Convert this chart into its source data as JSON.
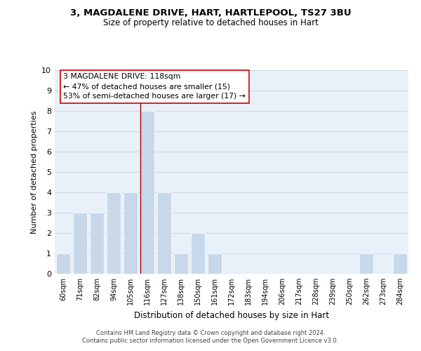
{
  "title_line1": "3, MAGDALENE DRIVE, HART, HARTLEPOOL, TS27 3BU",
  "title_line2": "Size of property relative to detached houses in Hart",
  "xlabel": "Distribution of detached houses by size in Hart",
  "ylabel": "Number of detached properties",
  "bin_labels": [
    "60sqm",
    "71sqm",
    "82sqm",
    "94sqm",
    "105sqm",
    "116sqm",
    "127sqm",
    "138sqm",
    "150sqm",
    "161sqm",
    "172sqm",
    "183sqm",
    "194sqm",
    "206sqm",
    "217sqm",
    "228sqm",
    "239sqm",
    "250sqm",
    "262sqm",
    "273sqm",
    "284sqm"
  ],
  "bar_heights": [
    1,
    3,
    3,
    4,
    4,
    8,
    4,
    1,
    2,
    1,
    0,
    0,
    0,
    0,
    0,
    0,
    0,
    0,
    1,
    0,
    1
  ],
  "bar_color": "#c8d8eb",
  "highlighted_bar_index": 5,
  "highlight_line_color": "#aa0000",
  "ylim": [
    0,
    10
  ],
  "yticks": [
    0,
    1,
    2,
    3,
    4,
    5,
    6,
    7,
    8,
    9,
    10
  ],
  "annotation_title": "3 MAGDALENE DRIVE: 118sqm",
  "annotation_line2": "← 47% of detached houses are smaller (15)",
  "annotation_line3": "53% of semi-detached houses are larger (17) →",
  "footer_line1": "Contains HM Land Registry data © Crown copyright and database right 2024.",
  "footer_line2": "Contains public sector information licensed under the Open Government Licence v3.0.",
  "grid_color": "#ccd8e4",
  "background_color": "#e8f0f8"
}
